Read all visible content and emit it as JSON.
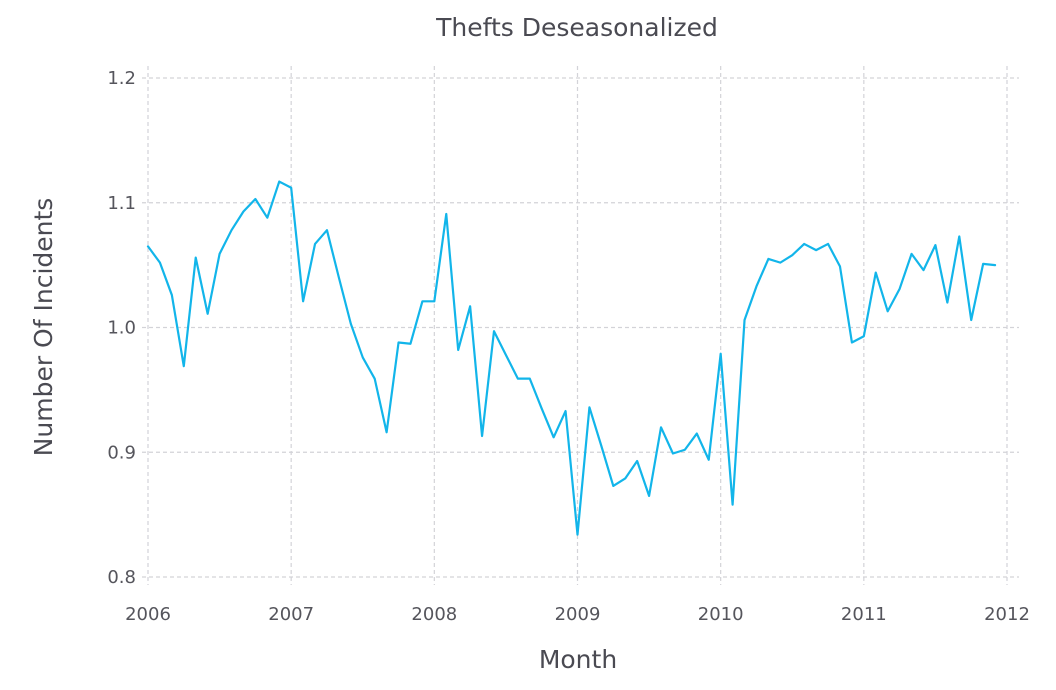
{
  "chart_data": {
    "type": "line",
    "title": "Thefts Deseasonalized",
    "xlabel": "Month",
    "ylabel": "Number Of Incidents",
    "xlim": [
      2006,
      2012
    ],
    "ylim": [
      0.8,
      1.2
    ],
    "grid": true,
    "x_ticks": [
      "2006",
      "2007",
      "2008",
      "2009",
      "2010",
      "2011",
      "2012"
    ],
    "y_ticks": [
      "0.8",
      "0.9",
      "1.0",
      "1.1",
      "1.2"
    ],
    "colors": {
      "series": "#12b5ea",
      "grid": "#d3d3d8",
      "text": "#4a4a52"
    },
    "x": [
      "2006-01",
      "2006-02",
      "2006-03",
      "2006-04",
      "2006-05",
      "2006-06",
      "2006-07",
      "2006-08",
      "2006-09",
      "2006-10",
      "2006-11",
      "2006-12",
      "2007-01",
      "2007-02",
      "2007-03",
      "2007-04",
      "2007-05",
      "2007-06",
      "2007-07",
      "2007-08",
      "2007-09",
      "2007-10",
      "2007-11",
      "2007-12",
      "2008-01",
      "2008-02",
      "2008-03",
      "2008-04",
      "2008-05",
      "2008-06",
      "2008-07",
      "2008-08",
      "2008-09",
      "2008-10",
      "2008-11",
      "2008-12",
      "2009-01",
      "2009-02",
      "2009-03",
      "2009-04",
      "2009-05",
      "2009-06",
      "2009-07",
      "2009-08",
      "2009-09",
      "2009-10",
      "2009-11",
      "2009-12",
      "2010-01",
      "2010-02",
      "2010-03",
      "2010-04",
      "2010-05",
      "2010-06",
      "2010-07",
      "2010-08",
      "2010-09",
      "2010-10",
      "2010-11",
      "2010-12",
      "2011-01",
      "2011-02",
      "2011-03",
      "2011-04",
      "2011-05",
      "2011-06",
      "2011-07",
      "2011-08",
      "2011-09",
      "2011-10",
      "2011-11",
      "2011-12"
    ],
    "series": [
      {
        "values": [
          1.065,
          1.052,
          1.026,
          0.969,
          1.056,
          1.011,
          1.059,
          1.078,
          1.093,
          1.103,
          1.088,
          1.117,
          1.112,
          1.021,
          1.067,
          1.078,
          1.04,
          1.003,
          0.976,
          0.959,
          0.916,
          0.988,
          0.987,
          1.021,
          1.021,
          1.091,
          0.982,
          1.017,
          0.913,
          0.997,
          0.978,
          0.959,
          0.959,
          0.935,
          0.912,
          0.933,
          0.834,
          0.936,
          0.905,
          0.873,
          0.879,
          0.893,
          0.865,
          0.92,
          0.899,
          0.902,
          0.915,
          0.894,
          0.979,
          0.858,
          1.006,
          1.033,
          1.055,
          1.052,
          1.058,
          1.067,
          1.062,
          1.067,
          1.049,
          0.988,
          0.993,
          1.044,
          1.013,
          1.031,
          1.059,
          1.046,
          1.066,
          1.02,
          1.073,
          1.006,
          1.051,
          1.05
        ]
      }
    ]
  }
}
